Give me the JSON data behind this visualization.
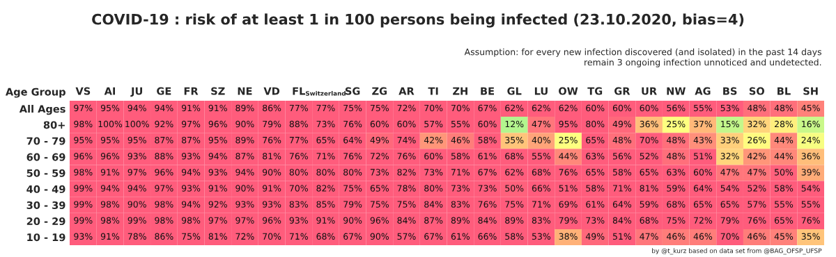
{
  "chart_data": {
    "type": "heatmap",
    "title": "COVID-19 : risk of at least 1 in 100 persons being infected (23.10.2020, bias=4)",
    "ylabel": "Age Group",
    "annotations": [
      "Assumption: for every new infection discovered (and isolated) in the past 14 days\nremain 3 ongoing infection unnoticed and undetected.",
      "by @t_kurz based on data set from @BAG_OFSP_UFSP"
    ],
    "categories": [
      "VS",
      "AI",
      "JU",
      "GE",
      "FR",
      "SZ",
      "NE",
      "VD",
      "FL",
      "Switzerland",
      "SG",
      "ZG",
      "AR",
      "TI",
      "ZH",
      "BE",
      "GL",
      "LU",
      "OW",
      "TG",
      "GR",
      "UR",
      "NW",
      "AG",
      "BS",
      "SO",
      "BL",
      "SH"
    ],
    "y_categories": [
      "All Ages",
      "80+",
      "70 - 79",
      "60 - 69",
      "50 - 59",
      "40 - 49",
      "30 - 39",
      "20 - 29",
      "10 - 19"
    ],
    "cells": [
      [
        97,
        95,
        94,
        94,
        91,
        91,
        89,
        86,
        77,
        77,
        75,
        75,
        72,
        70,
        70,
        67,
        62,
        62,
        62,
        60,
        60,
        60,
        56,
        55,
        53,
        48,
        48,
        45
      ],
      [
        98,
        100,
        100,
        92,
        97,
        96,
        90,
        79,
        88,
        73,
        76,
        60,
        60,
        57,
        55,
        60,
        12,
        47,
        95,
        80,
        49,
        36,
        25,
        37,
        15,
        32,
        28,
        16
      ],
      [
        95,
        95,
        95,
        87,
        87,
        95,
        89,
        76,
        77,
        65,
        64,
        49,
        74,
        42,
        46,
        58,
        35,
        40,
        25,
        65,
        48,
        70,
        48,
        43,
        33,
        26,
        44,
        24
      ],
      [
        96,
        96,
        93,
        88,
        93,
        94,
        87,
        81,
        76,
        71,
        76,
        72,
        76,
        60,
        58,
        61,
        68,
        55,
        44,
        63,
        56,
        52,
        48,
        51,
        32,
        42,
        44,
        36
      ],
      [
        98,
        91,
        97,
        96,
        94,
        93,
        94,
        90,
        80,
        80,
        80,
        73,
        82,
        73,
        71,
        67,
        62,
        68,
        76,
        65,
        58,
        65,
        63,
        60,
        47,
        47,
        50,
        39
      ],
      [
        99,
        94,
        94,
        97,
        93,
        91,
        90,
        91,
        70,
        82,
        75,
        65,
        78,
        80,
        73,
        73,
        50,
        66,
        51,
        58,
        71,
        81,
        59,
        64,
        54,
        52,
        58,
        54
      ],
      [
        99,
        98,
        90,
        98,
        94,
        92,
        93,
        93,
        83,
        85,
        79,
        75,
        75,
        84,
        83,
        76,
        75,
        71,
        69,
        61,
        64,
        59,
        68,
        65,
        65,
        57,
        55,
        55
      ],
      [
        99,
        98,
        99,
        98,
        98,
        97,
        97,
        96,
        93,
        91,
        90,
        96,
        84,
        87,
        89,
        84,
        89,
        83,
        79,
        73,
        84,
        68,
        75,
        72,
        79,
        76,
        65,
        76
      ],
      [
        93,
        91,
        78,
        86,
        75,
        81,
        72,
        70,
        71,
        68,
        67,
        90,
        57,
        67,
        61,
        66,
        58,
        53,
        38,
        49,
        51,
        47,
        46,
        46,
        70,
        46,
        45,
        35
      ]
    ],
    "cell_labels": [
      [
        "97%",
        "95%",
        "94%",
        "94%",
        "91%",
        "91%",
        "89%",
        "86%",
        "77%",
        "77%",
        "75%",
        "75%",
        "72%",
        "70%",
        "70%",
        "67%",
        "62%",
        "62%",
        "62%",
        "60%",
        "60%",
        "60%",
        "56%",
        "55%",
        "53%",
        "48%",
        "48%",
        "45%"
      ],
      [
        "98%",
        "100%",
        "100%",
        "92%",
        "97%",
        "96%",
        "90%",
        "79%",
        "88%",
        "73%",
        "76%",
        "60%",
        "60%",
        "57%",
        "55%",
        "60%",
        "12%",
        "47%",
        "95%",
        "80%",
        "49%",
        "36%",
        "25%",
        "37%",
        "15%",
        "32%",
        "28%",
        "16%"
      ],
      [
        "95%",
        "95%",
        "95%",
        "87%",
        "87%",
        "95%",
        "89%",
        "76%",
        "77%",
        "65%",
        "64%",
        "49%",
        "74%",
        "42%",
        "46%",
        "58%",
        "35%",
        "40%",
        "25%",
        "65%",
        "48%",
        "70%",
        "48%",
        "43%",
        "33%",
        "26%",
        "44%",
        "24%"
      ],
      [
        "96%",
        "96%",
        "93%",
        "88%",
        "93%",
        "94%",
        "87%",
        "81%",
        "76%",
        "71%",
        "76%",
        "72%",
        "76%",
        "60%",
        "58%",
        "61%",
        "68%",
        "55%",
        "44%",
        "63%",
        "56%",
        "52%",
        "48%",
        "51%",
        "32%",
        "42%",
        "44%",
        "36%"
      ],
      [
        "98%",
        "91%",
        "97%",
        "96%",
        "94%",
        "93%",
        "94%",
        "90%",
        "80%",
        "80%",
        "80%",
        "73%",
        "82%",
        "73%",
        "71%",
        "67%",
        "62%",
        "68%",
        "76%",
        "65%",
        "58%",
        "65%",
        "63%",
        "60%",
        "47%",
        "47%",
        "50%",
        "39%"
      ],
      [
        "99%",
        "94%",
        "94%",
        "97%",
        "93%",
        "91%",
        "90%",
        "91%",
        "70%",
        "82%",
        "75%",
        "65%",
        "78%",
        "80%",
        "73%",
        "73%",
        "50%",
        "66%",
        "51%",
        "58%",
        "71%",
        "81%",
        "59%",
        "64%",
        "54%",
        "52%",
        "58%",
        "54%"
      ],
      [
        "99%",
        "98%",
        "90%",
        "98%",
        "94%",
        "92%",
        "93%",
        "93%",
        "83%",
        "85%",
        "79%",
        "75%",
        "75%",
        "84%",
        "83%",
        "76%",
        "75%",
        "71%",
        "69%",
        "61%",
        "64%",
        "59%",
        "68%",
        "65%",
        "65%",
        "57%",
        "55%",
        "55%"
      ],
      [
        "99%",
        "98%",
        "99%",
        "98%",
        "98%",
        "97%",
        "97%",
        "96%",
        "93%",
        "91%",
        "90%",
        "96%",
        "84%",
        "87%",
        "89%",
        "84%",
        "89%",
        "83%",
        "79%",
        "73%",
        "84%",
        "68%",
        "75%",
        "72%",
        "79%",
        "76%",
        "65%",
        "76%"
      ],
      [
        "93%",
        "91%",
        "78%",
        "86%",
        "75%",
        "81%",
        "72%",
        "70%",
        "71%",
        "68%",
        "67%",
        "90%",
        "57%",
        "67%",
        "61%",
        "66%",
        "58%",
        "53%",
        "38%",
        "49%",
        "51%",
        "47%",
        "46%",
        "46%",
        "70%",
        "46%",
        "45%",
        "35%"
      ]
    ]
  }
}
